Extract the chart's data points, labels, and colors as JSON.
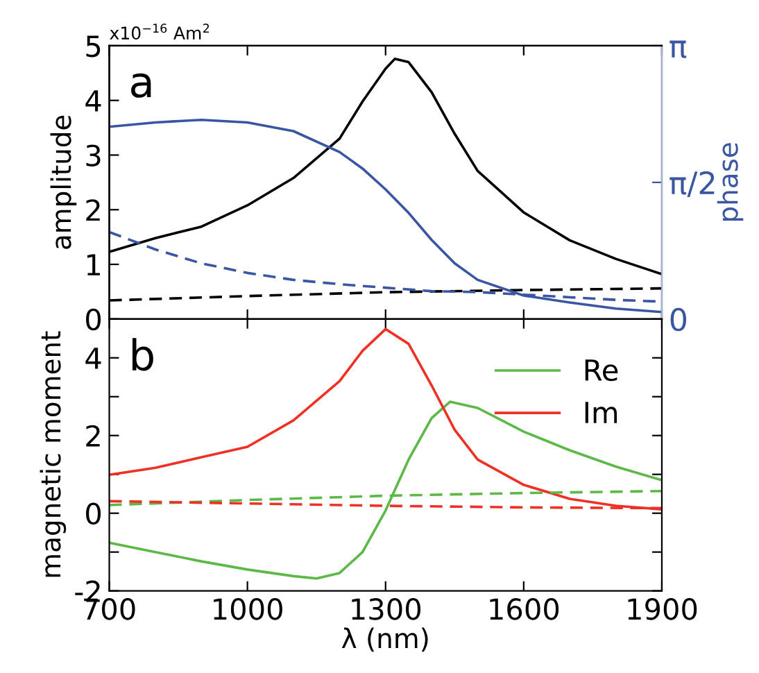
{
  "chart_data": [
    {
      "type": "line",
      "ylabel": "amplitude",
      "y2label": "phase",
      "annotations": [
        "a",
        "x10$^{−16}$ Am$^{2}$"
      ],
      "x": [
        700,
        800,
        900,
        1000,
        1100,
        1200,
        1250,
        1300,
        1320,
        1350,
        1400,
        1450,
        1500,
        1600,
        1700,
        1800,
        1900
      ],
      "xlim": [
        700,
        1900
      ],
      "xticks": [
        {
          "value": 700,
          "label": null
        },
        {
          "value": 1000,
          "label": null
        },
        {
          "value": 1300,
          "label": null
        },
        {
          "value": 1600,
          "label": null
        },
        {
          "value": 1900,
          "label": null
        }
      ],
      "ylim": [
        0,
        5
      ],
      "yticks": [
        0,
        1,
        2,
        3,
        4,
        5
      ],
      "y2lim": [
        0,
        3.1416
      ],
      "y2ticks": [
        {
          "value": 0,
          "label": "0"
        },
        {
          "value": 1.5708,
          "label": "π/2"
        },
        {
          "value": 3.1416,
          "label": "π"
        }
      ],
      "tick_labels": "y",
      "grid": false,
      "legend": false,
      "series": [
        {
          "color": "#000000",
          "line_style": "solid",
          "values": [
            1.23,
            1.48,
            1.69,
            2.08,
            2.58,
            3.3,
            3.98,
            4.58,
            4.76,
            4.7,
            4.15,
            3.39,
            2.71,
            1.95,
            1.44,
            1.1,
            0.82
          ]
        },
        {
          "color": "#000000",
          "line_style": "dashed",
          "x": [
            700,
            1000,
            1300,
            1600,
            1900
          ],
          "values": [
            0.34,
            0.42,
            0.49,
            0.53,
            0.56
          ]
        },
        {
          "color": "#3a55a4",
          "line_style": "solid",
          "axis": "y2",
          "x": [
            700,
            800,
            900,
            1000,
            1100,
            1200,
            1250,
            1300,
            1350,
            1400,
            1450,
            1500,
            1600,
            1700,
            1800,
            1900
          ],
          "values": [
            2.21,
            2.26,
            2.29,
            2.26,
            2.16,
            1.92,
            1.73,
            1.49,
            1.22,
            0.91,
            0.64,
            0.45,
            0.27,
            0.19,
            0.12,
            0.08
          ]
        },
        {
          "color": "#3a55a4",
          "line_style": "dashed",
          "axis": "y2",
          "x": [
            700,
            800,
            900,
            1000,
            1100,
            1200,
            1300,
            1400,
            1500,
            1600,
            1700,
            1800,
            1900
          ],
          "values": [
            1.0,
            0.8,
            0.64,
            0.53,
            0.45,
            0.4,
            0.36,
            0.32,
            0.31,
            0.28,
            0.25,
            0.22,
            0.2
          ]
        }
      ]
    },
    {
      "type": "line",
      "ylabel": "magnetic moment",
      "xlabel": "λ (nm)",
      "annotations": [
        "b"
      ],
      "x": [
        700,
        800,
        900,
        1000,
        1100,
        1150,
        1200,
        1250,
        1300,
        1350,
        1400,
        1440,
        1500,
        1600,
        1700,
        1800,
        1900
      ],
      "xlim": [
        700,
        1900
      ],
      "xticks": [
        700,
        1000,
        1300,
        1600,
        1900
      ],
      "ylim": [
        -2,
        5
      ],
      "yticks": [
        -2,
        {
          "value": -1,
          "label": null
        },
        0,
        {
          "value": 1,
          "label": null
        },
        2,
        {
          "value": 3,
          "label": null
        },
        4
      ],
      "grid": false,
      "legend": "top right",
      "series": [
        {
          "name": "Re",
          "color": "#5cb947",
          "line_style": "solid",
          "values": [
            -0.76,
            -1.0,
            -1.24,
            -1.45,
            -1.62,
            -1.68,
            -1.54,
            -1.0,
            0.07,
            1.38,
            2.45,
            2.87,
            2.71,
            2.1,
            1.62,
            1.2,
            0.85
          ]
        },
        {
          "name": "Im",
          "color": "#ee3124",
          "line_style": "solid",
          "x": [
            700,
            800,
            900,
            1000,
            1100,
            1200,
            1250,
            1300,
            1350,
            1400,
            1450,
            1500,
            1600,
            1700,
            1800,
            1900
          ],
          "values": [
            0.99,
            1.17,
            1.44,
            1.71,
            2.39,
            3.4,
            4.18,
            4.74,
            4.36,
            3.29,
            2.15,
            1.38,
            0.73,
            0.37,
            0.19,
            0.1
          ]
        },
        {
          "color": "#5cb947",
          "line_style": "dashed",
          "x": [
            700,
            1000,
            1300,
            1600,
            1900
          ],
          "values": [
            0.21,
            0.34,
            0.45,
            0.52,
            0.57
          ]
        },
        {
          "color": "#ee3124",
          "line_style": "dashed",
          "x": [
            700,
            1000,
            1300,
            1600,
            1900
          ],
          "values": [
            0.31,
            0.25,
            0.19,
            0.15,
            0.13
          ]
        }
      ]
    }
  ]
}
